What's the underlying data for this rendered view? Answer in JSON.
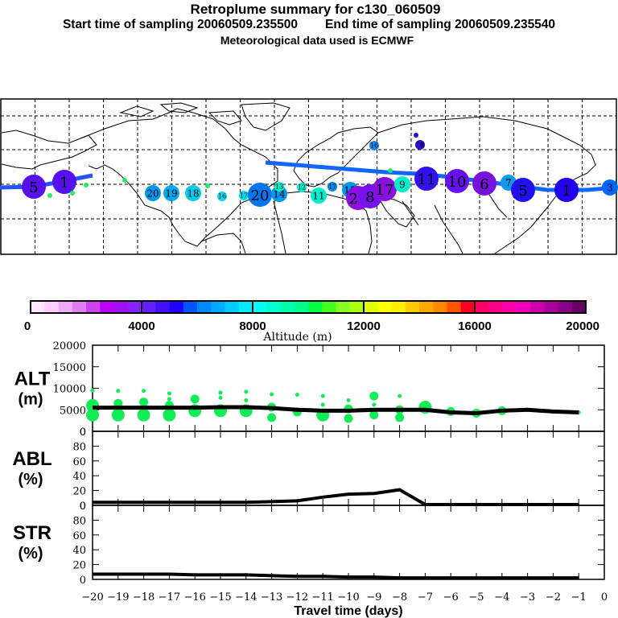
{
  "header": {
    "title": "Retroplume summary for c130_060509",
    "start_label": "Start time of sampling 20060509.235500",
    "end_label": "End time of sampling 20060509.235540",
    "met_label": "Meteorological data used is ECMWF"
  },
  "colorbar": {
    "label": "Altitude (m)",
    "ticks": [
      "0",
      "4000",
      "8000",
      "12000",
      "16000",
      "20000"
    ],
    "range": [
      0,
      20000
    ],
    "colors": [
      "#ffe6ff",
      "#ffccff",
      "#f0aaf8",
      "#e080f0",
      "#cc44ee",
      "#bb00ff",
      "#a010f0",
      "#8820ff",
      "#6620ff",
      "#4410ff",
      "#2200ff",
      "#0055ff",
      "#0088ff",
      "#00aaff",
      "#00ccff",
      "#00eeff",
      "#00ffee",
      "#00ffcc",
      "#00ffaa",
      "#00ff88",
      "#00ff44",
      "#44ff22",
      "#88ff22",
      "#aaff11",
      "#ddff00",
      "#ffff00",
      "#ffee00",
      "#ffcc00",
      "#ffaa00",
      "#ff8800",
      "#ff5500",
      "#ff0022",
      "#ff0066",
      "#ff0088",
      "#ff00aa",
      "#ee00bb",
      "#cc00aa",
      "#aa0099",
      "#880088",
      "#660066"
    ]
  },
  "map": {
    "description": "Global map with retroplume cluster positions, labeled with days back",
    "markers": [
      {
        "label": "1",
        "lon": -170,
        "lat": 41,
        "size": "large",
        "color": "#5511ee"
      },
      {
        "label": "5",
        "lon": -178,
        "lat": 40,
        "size": "large",
        "color": "#5511ee"
      },
      {
        "label": "3",
        "lon": 178,
        "lat": 40,
        "size": "medium",
        "color": "#0066ff"
      },
      {
        "label": "1",
        "lon": 150,
        "lat": 39,
        "size": "large",
        "color": "#2200ee"
      },
      {
        "label": "20",
        "lon": -70,
        "lat": 37,
        "size": "medium",
        "color": "#0099ee"
      },
      {
        "label": "19",
        "lon": -64,
        "lat": 37,
        "size": "medium",
        "color": "#00aaee"
      },
      {
        "label": "18",
        "lon": -59,
        "lat": 37,
        "size": "medium",
        "color": "#00ccee"
      },
      {
        "label": "16",
        "lon": -46,
        "lat": 36,
        "size": "small",
        "color": "#00ddee"
      },
      {
        "label": "17",
        "lon": -38,
        "lat": 38,
        "size": "small",
        "color": "#00ddee"
      },
      {
        "label": "20",
        "lon": -30,
        "lat": 37,
        "size": "large",
        "color": "#0077ee"
      },
      {
        "label": "14",
        "lon": -20,
        "lat": 37,
        "size": "medium",
        "color": "#0099ee"
      },
      {
        "label": "13",
        "lon": -20,
        "lat": 41,
        "size": "small",
        "color": "#00eecc"
      },
      {
        "label": "12",
        "lon": -10,
        "lat": 41,
        "size": "small",
        "color": "#00eecc"
      },
      {
        "label": "11",
        "lon": 1,
        "lat": 37,
        "size": "medium",
        "color": "#00eecc"
      },
      {
        "label": "17",
        "lon": 12,
        "lat": 40,
        "size": "small",
        "color": "#0088ee"
      },
      {
        "label": "15",
        "lon": 24,
        "lat": 38,
        "size": "medium",
        "color": "#0099ee"
      },
      {
        "label": "20",
        "lon": 35,
        "lat": 35,
        "size": "large",
        "color": "#8811dd"
      },
      {
        "label": "8",
        "lon": 43,
        "lat": 34,
        "size": "large",
        "color": "#7711ee"
      },
      {
        "label": "17",
        "lon": 53,
        "lat": 38,
        "size": "large",
        "color": "#8811dd"
      },
      {
        "label": "9",
        "lon": 60,
        "lat": 41,
        "size": "medium",
        "color": "#00eecc"
      },
      {
        "label": "11",
        "lon": 80,
        "lat": 44,
        "size": "large",
        "color": "#3311ee"
      },
      {
        "label": "10",
        "lon": 100,
        "lat": 43,
        "size": "large",
        "color": "#6611ee"
      },
      {
        "label": "6",
        "lon": 115,
        "lat": 43,
        "size": "large",
        "color": "#7711dd"
      },
      {
        "label": "7",
        "lon": 126,
        "lat": 42,
        "size": "medium",
        "color": "#1199ee"
      },
      {
        "label": "5",
        "lon": 135,
        "lat": 38,
        "size": "large",
        "color": "#2211ee"
      },
      {
        "label": "16",
        "lon": 44,
        "lat": 63,
        "size": "small",
        "color": "#1188ee"
      },
      {
        "label": "18",
        "lon": 68,
        "lat": 60,
        "size": "small",
        "color": "#2211cc"
      }
    ]
  },
  "chart_data": [
    {
      "type": "scatter",
      "panel": "ALT",
      "ylabel": "ALT\n(m)",
      "xlim": [
        -20,
        0
      ],
      "ylim": [
        0,
        20000
      ],
      "yticks": [
        "0",
        "5000",
        "10000",
        "15000",
        "20000"
      ],
      "line": {
        "name": "mean altitude",
        "x": [
          -20,
          -19,
          -18,
          -17,
          -16,
          -15,
          -14,
          -13,
          -12,
          -11,
          -10,
          -9,
          -8,
          -7,
          -6,
          -5,
          -4,
          -3,
          -2,
          -1
        ],
        "y": [
          5500,
          5500,
          5500,
          5500,
          5500,
          5600,
          5600,
          5400,
          5000,
          4800,
          4800,
          5000,
          5000,
          5000,
          4400,
          4200,
          4800,
          5000,
          4600,
          4400
        ]
      },
      "points": [
        {
          "x": -20,
          "y": 3800,
          "r": "large"
        },
        {
          "x": -20,
          "y": 6000,
          "r": "large"
        },
        {
          "x": -20,
          "y": 9500,
          "r": "small"
        },
        {
          "x": -19,
          "y": 3800,
          "r": "large"
        },
        {
          "x": -19,
          "y": 6500,
          "r": "medium"
        },
        {
          "x": -19,
          "y": 9400,
          "r": "small"
        },
        {
          "x": -18,
          "y": 3800,
          "r": "large"
        },
        {
          "x": -18,
          "y": 6800,
          "r": "medium"
        },
        {
          "x": -18,
          "y": 9400,
          "r": "small"
        },
        {
          "x": -17,
          "y": 3800,
          "r": "large"
        },
        {
          "x": -17,
          "y": 6000,
          "r": "medium"
        },
        {
          "x": -17,
          "y": 7500,
          "r": "small"
        },
        {
          "x": -17,
          "y": 8800,
          "r": "small"
        },
        {
          "x": -16,
          "y": 4800,
          "r": "large"
        },
        {
          "x": -16,
          "y": 7500,
          "r": "medium"
        },
        {
          "x": -15,
          "y": 4800,
          "r": "large"
        },
        {
          "x": -15,
          "y": 7800,
          "r": "small"
        },
        {
          "x": -15,
          "y": 9000,
          "r": "small"
        },
        {
          "x": -14,
          "y": 4800,
          "r": "large"
        },
        {
          "x": -14,
          "y": 7200,
          "r": "small"
        },
        {
          "x": -14,
          "y": 9200,
          "r": "small"
        },
        {
          "x": -13,
          "y": 3200,
          "r": "medium"
        },
        {
          "x": -13,
          "y": 5600,
          "r": "medium"
        },
        {
          "x": -13,
          "y": 8600,
          "r": "small"
        },
        {
          "x": -12,
          "y": 4500,
          "r": "medium"
        },
        {
          "x": -12,
          "y": 8500,
          "r": "small"
        },
        {
          "x": -11,
          "y": 3800,
          "r": "large"
        },
        {
          "x": -11,
          "y": 6200,
          "r": "small"
        },
        {
          "x": -11,
          "y": 8200,
          "r": "small"
        },
        {
          "x": -10,
          "y": 3000,
          "r": "medium"
        },
        {
          "x": -10,
          "y": 5200,
          "r": "medium"
        },
        {
          "x": -10,
          "y": 7200,
          "r": "small"
        },
        {
          "x": -9,
          "y": 3800,
          "r": "medium"
        },
        {
          "x": -9,
          "y": 6200,
          "r": "small"
        },
        {
          "x": -9,
          "y": 8200,
          "r": "medium"
        },
        {
          "x": -8,
          "y": 3200,
          "r": "medium"
        },
        {
          "x": -8,
          "y": 5000,
          "r": "medium"
        },
        {
          "x": -8,
          "y": 8200,
          "r": "small"
        },
        {
          "x": -7,
          "y": 5600,
          "r": "large"
        },
        {
          "x": -6,
          "y": 4600,
          "r": "medium"
        },
        {
          "x": -5,
          "y": 4200,
          "r": "medium"
        },
        {
          "x": -4,
          "y": 4800,
          "r": "medium"
        },
        {
          "x": -3,
          "y": 5000,
          "r": "small"
        },
        {
          "x": -2,
          "y": 4600,
          "r": "small"
        },
        {
          "x": -1,
          "y": 4400,
          "r": "small"
        }
      ]
    },
    {
      "type": "line",
      "panel": "ABL",
      "ylabel": "ABL\n(%)",
      "xlim": [
        -20,
        0
      ],
      "ylim": [
        0,
        100
      ],
      "yticks": [
        "0",
        "20",
        "40",
        "60",
        "80",
        "0"
      ],
      "x": [
        -20,
        -19,
        -18,
        -17,
        -16,
        -15,
        -14,
        -13,
        -12,
        -11,
        -10,
        -9,
        -8,
        -7,
        -6,
        -5,
        -4,
        -3,
        -2,
        -1
      ],
      "y": [
        3,
        3,
        3,
        3,
        3,
        3,
        3,
        4,
        5,
        10,
        14,
        15,
        20,
        0,
        0,
        0,
        0,
        0,
        0,
        0
      ]
    },
    {
      "type": "line",
      "panel": "STR",
      "ylabel": "STR\n(%)",
      "xlim": [
        -20,
        0
      ],
      "ylim": [
        0,
        100
      ],
      "yticks": [
        "0",
        "20",
        "40",
        "60",
        "80",
        "0"
      ],
      "xticks": [
        "-20",
        "-19",
        "-18",
        "-17",
        "-16",
        "-15",
        "-14",
        "-13",
        "-12",
        "-11",
        "-10",
        "-9",
        "-8",
        "-7",
        "-6",
        "-5",
        "-4",
        "-3",
        "-2",
        "-1",
        "0"
      ],
      "xlabel": "Travel time (days)",
      "x": [
        -20,
        -19,
        -18,
        -17,
        -16,
        -15,
        -14,
        -13,
        -12,
        -11,
        -10,
        -9,
        -8,
        -7,
        -6,
        -5,
        -4,
        -3,
        -2,
        -1
      ],
      "y": [
        6,
        6,
        6,
        6,
        5,
        5,
        5,
        4,
        3,
        3,
        2,
        2,
        1,
        1,
        1,
        1,
        1,
        1,
        1,
        1
      ]
    }
  ]
}
